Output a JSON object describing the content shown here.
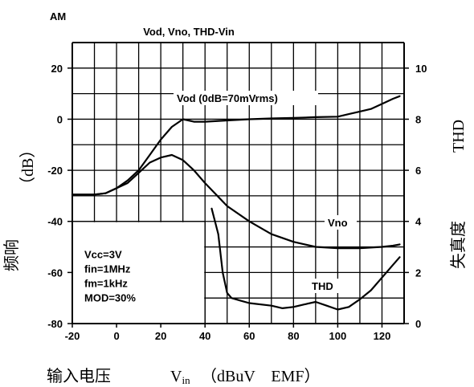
{
  "corner_label": "AM",
  "chart_data": {
    "type": "line",
    "title": "Vod, Vno, THD-Vin",
    "xlabel_cn": "输入电压",
    "xlabel_sym": "V",
    "xlabel_sub": "in",
    "xlabel_unit": "（dBuV　EMF）",
    "ylabel_left_cn": "频响",
    "ylabel_left_unit": "（dB）",
    "ylabel_right_cn": "失真度",
    "ylabel_right_unit": "THD",
    "xlim": [
      -20,
      130
    ],
    "ylim_left": [
      -80,
      30
    ],
    "ylim_right": [
      0,
      11
    ],
    "x_ticks": [
      -20,
      0,
      20,
      40,
      60,
      80,
      100,
      120
    ],
    "y_left_ticks": [
      20,
      0,
      -20,
      -40,
      -60,
      -80
    ],
    "y_right_ticks": [
      10,
      8,
      6,
      4,
      2,
      0
    ],
    "grid": true,
    "conditions": [
      "Vcc=3V",
      "fin=1MHz",
      "fm=1kHz",
      "MOD=30%"
    ],
    "series": [
      {
        "name": "Vod (0dB=70mVrms)",
        "axis": "left",
        "x": [
          -20,
          -10,
          -5,
          0,
          5,
          10,
          15,
          20,
          25,
          30,
          35,
          40,
          50,
          60,
          70,
          80,
          90,
          100,
          105,
          110,
          115,
          120,
          125,
          128
        ],
        "y": [
          -29.5,
          -29.5,
          -29,
          -27,
          -24,
          -20,
          -14,
          -8,
          -3,
          0,
          -1,
          -1,
          -0.5,
          0,
          0.3,
          0.5,
          0.8,
          1,
          2,
          3,
          4,
          6,
          8,
          9
        ]
      },
      {
        "name": "Vno",
        "axis": "left",
        "x": [
          -20,
          -10,
          -5,
          0,
          5,
          10,
          15,
          20,
          25,
          30,
          35,
          40,
          50,
          60,
          70,
          80,
          90,
          100,
          110,
          120,
          125,
          128
        ],
        "y": [
          -29.5,
          -29.5,
          -29,
          -27,
          -25,
          -21,
          -17,
          -15,
          -14,
          -16,
          -20,
          -25,
          -34,
          -40,
          -45,
          -48,
          -50,
          -50.5,
          -50.5,
          -50,
          -49.5,
          -49
        ]
      },
      {
        "name": "THD",
        "axis": "right",
        "x": [
          43,
          46,
          48,
          50,
          52,
          56,
          60,
          70,
          75,
          80,
          85,
          90,
          95,
          100,
          105,
          110,
          115,
          120,
          125,
          128
        ],
        "y": [
          4.5,
          3.5,
          2,
          1.2,
          1.0,
          0.9,
          0.8,
          0.7,
          0.6,
          0.65,
          0.75,
          0.85,
          0.7,
          0.55,
          0.65,
          0.95,
          1.3,
          1.8,
          2.3,
          2.6
        ]
      }
    ]
  }
}
